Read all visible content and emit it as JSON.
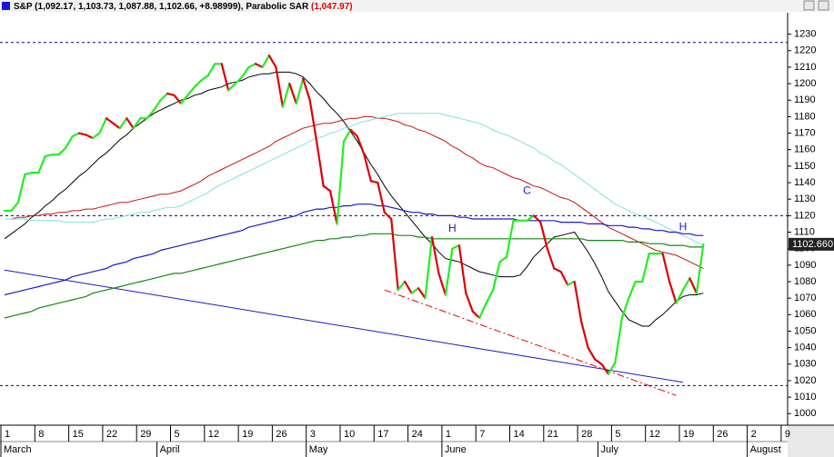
{
  "chart_data": {
    "type": "line",
    "title": "S&P",
    "ohlc": "(1,092.17, 1,103.73, 1,087.88, 1,102.66, +8.98999),",
    "indicator": "Parabolic SAR",
    "indicator_value": "(1,047.97)",
    "last_label": "1102.660",
    "categories": [
      "1",
      null,
      null,
      null,
      null,
      "8",
      null,
      null,
      null,
      null,
      "15",
      null,
      null,
      null,
      null,
      "22",
      null,
      null,
      null,
      null,
      "29",
      null,
      null,
      null,
      null,
      "5",
      null,
      null,
      null,
      null,
      "12",
      null,
      null,
      null,
      null,
      "19",
      null,
      null,
      null,
      null,
      "26",
      null,
      null,
      null,
      null,
      "3",
      null,
      null,
      null,
      null,
      "10",
      null,
      null,
      null,
      null,
      "17",
      null,
      null,
      null,
      null,
      "24",
      null,
      null,
      null,
      null,
      "1",
      null,
      null,
      null,
      null,
      "7",
      null,
      null,
      null,
      null,
      "14",
      null,
      null,
      null,
      null,
      "21",
      null,
      null,
      null,
      null,
      "28",
      null,
      null,
      null,
      null,
      "5",
      null,
      null,
      null,
      null,
      "12",
      null,
      null,
      null,
      null,
      "19",
      null,
      null,
      null,
      null,
      "26",
      null,
      null,
      null,
      null,
      "2",
      null,
      null,
      null,
      null,
      "9",
      null,
      null,
      null,
      null,
      null,
      null
    ],
    "month_labels": [
      "March",
      null,
      null,
      null,
      null,
      null,
      null,
      null,
      null,
      null,
      null,
      null,
      null,
      null,
      null,
      null,
      null,
      null,
      null,
      null,
      null,
      null,
      null,
      "April",
      null,
      null,
      null,
      null,
      null,
      null,
      null,
      null,
      null,
      null,
      null,
      null,
      null,
      null,
      null,
      null,
      null,
      null,
      null,
      null,
      null,
      "May",
      null,
      null,
      null,
      null,
      null,
      null,
      null,
      null,
      null,
      null,
      null,
      null,
      null,
      null,
      null,
      null,
      null,
      null,
      null,
      "June",
      null,
      null,
      null,
      null,
      null,
      null,
      null,
      null,
      null,
      null,
      null,
      null,
      null,
      null,
      null,
      null,
      null,
      null,
      null,
      null,
      null,
      null,
      "July",
      null,
      null,
      null,
      null,
      null,
      null,
      null,
      null,
      null,
      null,
      null,
      null,
      null,
      null,
      null,
      null,
      null,
      null,
      null,
      null,
      null,
      "August",
      null,
      null,
      null,
      null,
      null,
      null,
      null,
      null,
      null,
      null,
      null
    ],
    "ylim": [
      993,
      1243
    ],
    "yticks": [
      1000,
      1010,
      1020,
      1030,
      1040,
      1050,
      1060,
      1070,
      1080,
      1090,
      1100,
      1110,
      1120,
      1130,
      1140,
      1150,
      1160,
      1170,
      1180,
      1190,
      1200,
      1210,
      1220,
      1230
    ],
    "series": [
      {
        "name": "S&P",
        "up_color": "#22ee22",
        "down_color": "#dd0000",
        "width": 2.2,
        "values": [
          1123,
          1123,
          1128,
          1145,
          1146,
          1146,
          1156,
          1157,
          1157,
          1161,
          1168,
          1170,
          1169,
          1167,
          1170,
          1179,
          1176,
          1173,
          1179,
          1173,
          1179,
          1179,
          1184,
          1190,
          1194,
          1193,
          1188,
          1193,
          1198,
          1202,
          1205,
          1212,
          1212,
          1196,
          1200,
          1204,
          1210,
          1212,
          1210,
          1217,
          1210,
          1186,
          1200,
          1188,
          1203,
          1190,
          1165,
          1138,
          1135,
          1115,
          1165,
          1172,
          1168,
          1157,
          1141,
          1140,
          1122,
          1118,
          1075,
          1080,
          1073,
          1076,
          1070,
          1107,
          1085,
          1072,
          1100,
          1102,
          1073,
          1062,
          1058,
          1067,
          1075,
          1092,
          1095,
          1117,
          1117,
          1117,
          1120,
          1116,
          1100,
          1088,
          1086,
          1078,
          1080,
          1056,
          1040,
          1033,
          1030,
          1024,
          1031,
          1058,
          1070,
          1080,
          1080,
          1097,
          1097,
          1097,
          1080,
          1067,
          1075,
          1082,
          1073,
          1102.66,
          null,
          null,
          null,
          null,
          null,
          null,
          null,
          null,
          null,
          null,
          null,
          null,
          null,
          null,
          null,
          null,
          null,
          null
        ]
      },
      {
        "color": "#000000",
        "width": 1,
        "values": [
          1106,
          1109,
          1112,
          1115,
          1119,
          1122,
          1126,
          1129,
          1133,
          1136,
          1140,
          1144,
          1147,
          1151,
          1155,
          1158,
          1162,
          1166,
          1169,
          1173,
          1176,
          1179,
          1182,
          1184,
          1186,
          1188,
          1190,
          1191,
          1193,
          1194,
          1196,
          1197,
          1198,
          1200,
          1201,
          1202,
          1204,
          1205,
          1206,
          1206,
          1207,
          1207,
          1207,
          1206,
          1204,
          1200,
          1195,
          1191,
          1186,
          1182,
          1177,
          1171,
          1165,
          1158,
          1151,
          1145,
          1138,
          1132,
          1127,
          1122,
          1117,
          1112,
          1107,
          1103,
          1098,
          1094,
          1093,
          1092,
          1090,
          1088,
          1086,
          1085,
          1084,
          1083,
          1083,
          1083,
          1084,
          1089,
          1095,
          1099,
          1103,
          1107,
          1108,
          1109,
          1110,
          1104,
          1098,
          1091,
          1083,
          1074,
          1068,
          1062,
          1057,
          1055,
          1053,
          1053,
          1057,
          1060,
          1064,
          1068,
          1071,
          1072,
          1072,
          1073,
          null,
          null,
          null,
          null,
          null,
          null,
          null,
          null,
          null,
          null,
          null,
          null,
          null,
          null,
          null,
          null,
          null,
          null
        ]
      },
      {
        "color": "#cc1111",
        "width": 1,
        "values": [
          1118,
          1118,
          1119,
          1119,
          1120,
          1120,
          1121,
          1121,
          1122,
          1122,
          1123,
          1123,
          1124,
          1124,
          1125,
          1126,
          1127,
          1128,
          1128,
          1129,
          1130,
          1131,
          1132,
          1133,
          1133,
          1134,
          1135,
          1137,
          1139,
          1141,
          1144,
          1146,
          1148,
          1150,
          1152,
          1154,
          1156,
          1158,
          1160,
          1162,
          1165,
          1167,
          1169,
          1171,
          1173,
          1174,
          1175,
          1176,
          1176,
          1177,
          1178,
          1179,
          1179,
          1180,
          1180,
          1179,
          1179,
          1178,
          1177,
          1175,
          1174,
          1172,
          1171,
          1169,
          1167,
          1165,
          1162,
          1160,
          1157,
          1155,
          1152,
          1150,
          1149,
          1147,
          1145,
          1143,
          1142,
          1140,
          1138,
          1137,
          1135,
          1133,
          1131,
          1130,
          1128,
          1125,
          1122,
          1119,
          1116,
          1113,
          1111,
          1109,
          1107,
          1105,
          1103,
          1101,
          1099,
          1098,
          1097,
          1096,
          1094,
          1092,
          1090,
          1088,
          null,
          null,
          null,
          null,
          null,
          null,
          null,
          null,
          null,
          null,
          null,
          null,
          null,
          null,
          null,
          null,
          null,
          null
        ]
      },
      {
        "color": "#7fe0e0",
        "width": 1,
        "values": [
          1118,
          1118,
          1118,
          1118,
          1117,
          1117,
          1117,
          1117,
          1117,
          1116,
          1116,
          1116,
          1116,
          1116,
          1117,
          1118,
          1118,
          1119,
          1120,
          1121,
          1122,
          1122,
          1123,
          1124,
          1125,
          1125,
          1126,
          1128,
          1130,
          1132,
          1134,
          1137,
          1139,
          1141,
          1143,
          1145,
          1147,
          1149,
          1151,
          1153,
          1155,
          1157,
          1159,
          1161,
          1163,
          1165,
          1167,
          1168,
          1170,
          1171,
          1173,
          1174,
          1176,
          1177,
          1178,
          1179,
          1180,
          1181,
          1182,
          1182,
          1182,
          1182,
          1182,
          1182,
          1182,
          1181,
          1180,
          1179,
          1178,
          1177,
          1176,
          1174,
          1172,
          1170,
          1169,
          1167,
          1165,
          1163,
          1161,
          1158,
          1156,
          1153,
          1151,
          1148,
          1145,
          1142,
          1139,
          1136,
          1133,
          1130,
          1127,
          1125,
          1123,
          1121,
          1120,
          1118,
          1116,
          1114,
          1112,
          1110,
          1108,
          1106,
          1104,
          1102,
          null,
          null,
          null,
          null,
          null,
          null,
          null,
          null,
          null,
          null,
          null,
          null,
          null,
          null,
          null,
          null,
          null,
          null
        ]
      },
      {
        "color": "#1a1acc",
        "width": 1.2,
        "values": [
          1072,
          1073,
          1074,
          1075,
          1076,
          1077,
          1078,
          1079,
          1080,
          1081,
          1083,
          1084,
          1085,
          1086,
          1087,
          1088,
          1090,
          1091,
          1092,
          1094,
          1095,
          1096,
          1097,
          1099,
          1100,
          1101,
          1102,
          1103,
          1104,
          1105,
          1106,
          1107,
          1108,
          1109,
          1110,
          1111,
          1113,
          1114,
          1115,
          1116,
          1117,
          1118,
          1119,
          1120,
          1122,
          1123,
          1124,
          1124,
          1125,
          1125,
          1126,
          1126,
          1127,
          1127,
          1127,
          1126,
          1126,
          1125,
          1124,
          1123,
          1122,
          1122,
          1121,
          1121,
          1120,
          1120,
          1120,
          1119,
          1119,
          1118,
          1118,
          1118,
          1118,
          1118,
          1118,
          1118,
          1117,
          1117,
          1117,
          1117,
          1117,
          1117,
          1116,
          1116,
          1116,
          1116,
          1115,
          1115,
          1115,
          1114,
          1114,
          1114,
          1113,
          1113,
          1112,
          1112,
          1111,
          1111,
          1110,
          1110,
          1109,
          1109,
          1108,
          1108,
          null,
          null,
          null,
          null,
          null,
          null,
          null,
          null,
          null,
          null,
          null,
          null,
          null,
          null,
          null,
          null,
          null,
          null
        ]
      },
      {
        "color": "#118811",
        "width": 1.2,
        "values": [
          1058,
          1059,
          1060,
          1061,
          1062,
          1064,
          1065,
          1066,
          1067,
          1068,
          1069,
          1070,
          1071,
          1073,
          1074,
          1075,
          1076,
          1077,
          1078,
          1079,
          1080,
          1081,
          1082,
          1083,
          1084,
          1085,
          1085,
          1086,
          1087,
          1088,
          1089,
          1090,
          1091,
          1092,
          1093,
          1094,
          1095,
          1096,
          1097,
          1098,
          1099,
          1100,
          1101,
          1102,
          1103,
          1104,
          1105,
          1105,
          1106,
          1106,
          1107,
          1107,
          1108,
          1108,
          1109,
          1109,
          1109,
          1109,
          1108,
          1108,
          1108,
          1107,
          1107,
          1106,
          1106,
          1106,
          1106,
          1106,
          1106,
          1106,
          1106,
          1106,
          1106,
          1106,
          1106,
          1106,
          1106,
          1106,
          1106,
          1106,
          1106,
          1106,
          1106,
          1106,
          1106,
          1106,
          1105,
          1105,
          1105,
          1105,
          1105,
          1105,
          1104,
          1104,
          1104,
          1103,
          1103,
          1103,
          1102,
          1102,
          1102,
          1101,
          1101,
          1101,
          null,
          null,
          null,
          null,
          null,
          null,
          null,
          null,
          null,
          null,
          null,
          null,
          null,
          null,
          null,
          null,
          null,
          null
        ]
      }
    ],
    "reference_lines": [
      1225,
      1120,
      1017
    ],
    "reference_color": "#000080",
    "trendlines": [
      {
        "color": "#1a1acc",
        "dash": false,
        "start": {
          "index": 0,
          "value": 1087
        },
        "end": {
          "index": 100,
          "value": 1019
        }
      },
      {
        "color": "#dd0000",
        "dash": true,
        "start": {
          "index": 56,
          "value": 1075
        },
        "end": {
          "index": 99,
          "value": 1011
        }
      }
    ],
    "annotations": [
      {
        "text": "H",
        "index": 66,
        "value": 1112
      },
      {
        "text": "C",
        "index": 77,
        "value": 1135
      },
      {
        "text": "H",
        "index": 100,
        "value": 1113
      }
    ],
    "annotation_color": "#1a1acc"
  }
}
